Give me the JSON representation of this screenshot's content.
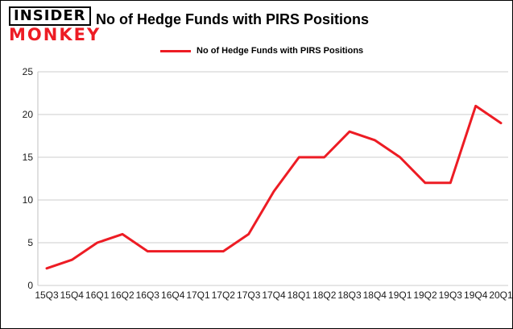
{
  "logo": {
    "line1": "INSIDER",
    "line2": "MONKEY"
  },
  "title": "No of Hedge Funds with PIRS Positions",
  "legend": {
    "label": "No of Hedge Funds with PIRS Positions"
  },
  "colors": {
    "line": "#ed1c24",
    "grid": "#cccccc",
    "axis": "#c0c0c0",
    "text": "#1a1a1a"
  },
  "chart_data": {
    "type": "line",
    "title": "No of Hedge Funds with PIRS Positions",
    "categories": [
      "15Q3",
      "15Q4",
      "16Q1",
      "16Q2",
      "16Q3",
      "16Q4",
      "17Q1",
      "17Q2",
      "17Q3",
      "17Q4",
      "18Q1",
      "18Q2",
      "18Q3",
      "18Q4",
      "19Q1",
      "19Q2",
      "19Q3",
      "19Q4",
      "20Q1"
    ],
    "values": [
      2,
      3,
      5,
      6,
      4,
      4,
      4,
      4,
      6,
      11,
      15,
      15,
      18,
      17,
      15,
      12,
      12,
      21,
      19
    ],
    "xlabel": "",
    "ylabel": "",
    "ylim": [
      0,
      25
    ],
    "yticks": [
      0,
      5,
      10,
      15,
      20,
      25
    ],
    "grid": true,
    "legend_position": "top-left"
  }
}
